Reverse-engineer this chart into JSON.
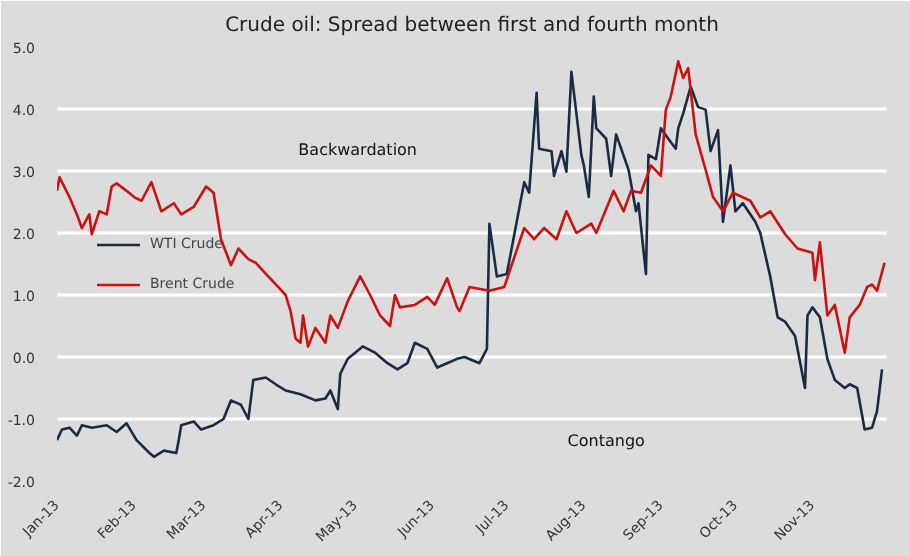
{
  "chart_data": {
    "type": "line",
    "title": "Crude oil: Spread between first and fourth month",
    "annotations": [
      "Backwardation",
      "Contango"
    ],
    "xlim": [
      "2013-01-01",
      "2013-12-01"
    ],
    "xticks": [
      {
        "value": "2013-01-01",
        "label": "Jan-13"
      },
      {
        "value": "2013-02-01",
        "label": "Feb-13"
      },
      {
        "value": "2013-03-01",
        "label": "Mar-13"
      },
      {
        "value": "2013-04-01",
        "label": "Apr-13"
      },
      {
        "value": "2013-05-01",
        "label": "May-13"
      },
      {
        "value": "2013-06-01",
        "label": "Jun-13"
      },
      {
        "value": "2013-07-01",
        "label": "Jul-13"
      },
      {
        "value": "2013-08-01",
        "label": "Aug-13"
      },
      {
        "value": "2013-09-01",
        "label": "Sep-13"
      },
      {
        "value": "2013-10-01",
        "label": "Oct-13"
      },
      {
        "value": "2013-11-01",
        "label": "Nov-13"
      }
    ],
    "ylim": [
      -2,
      5
    ],
    "yticks": [
      {
        "value": -2,
        "label": "-2.0"
      },
      {
        "value": -1,
        "label": "-1.0"
      },
      {
        "value": 0,
        "label": "0.0"
      },
      {
        "value": 1,
        "label": "1.0"
      },
      {
        "value": 2,
        "label": "2.0"
      },
      {
        "value": 3,
        "label": "3.0"
      },
      {
        "value": 4,
        "label": "4.0"
      },
      {
        "value": 5,
        "label": "5.0"
      }
    ],
    "grid": "y",
    "legend": "center left",
    "marker": "none",
    "line_style": "solid",
    "series": [
      {
        "name": "WTI Crude",
        "color": "#1c2b45",
        "x": [
          "2013-01-01",
          "2013-01-03",
          "2013-01-06",
          "2013-01-09",
          "2013-01-11",
          "2013-01-15",
          "2013-01-21",
          "2013-01-25",
          "2013-01-29",
          "2013-02-02",
          "2013-02-07",
          "2013-02-09",
          "2013-02-13",
          "2013-02-18",
          "2013-02-19",
          "2013-02-20",
          "2013-02-25",
          "2013-02-28",
          "2013-03-05",
          "2013-03-09",
          "2013-03-12",
          "2013-03-16",
          "2013-03-19",
          "2013-03-21",
          "2013-03-26",
          "2013-03-30",
          "2013-04-03",
          "2013-04-09",
          "2013-04-15",
          "2013-04-19",
          "2013-04-21",
          "2013-04-24",
          "2013-04-25",
          "2013-04-28",
          "2013-05-01",
          "2013-05-04",
          "2013-05-09",
          "2013-05-14",
          "2013-05-18",
          "2013-05-22",
          "2013-05-25",
          "2013-05-30",
          "2013-06-03",
          "2013-06-07",
          "2013-06-11",
          "2013-06-14",
          "2013-06-20",
          "2013-06-23",
          "2013-06-24",
          "2013-06-27",
          "2013-07-01",
          "2013-07-05",
          "2013-07-08",
          "2013-07-10",
          "2013-07-13",
          "2013-07-14",
          "2013-07-19",
          "2013-07-20",
          "2013-07-23",
          "2013-07-25",
          "2013-07-27",
          "2013-07-31",
          "2013-08-01",
          "2013-08-03",
          "2013-08-05",
          "2013-08-06",
          "2013-08-10",
          "2013-08-12",
          "2013-08-14",
          "2013-08-19",
          "2013-08-22",
          "2013-08-23",
          "2013-08-26",
          "2013-08-27",
          "2013-08-30",
          "2013-09-01",
          "2013-09-04",
          "2013-09-07",
          "2013-09-08",
          "2013-09-10",
          "2013-09-13",
          "2013-09-16",
          "2013-09-19",
          "2013-09-21",
          "2013-09-24",
          "2013-09-26",
          "2013-09-29",
          "2013-10-01",
          "2013-10-04",
          "2013-10-09",
          "2013-10-11",
          "2013-10-15",
          "2013-10-18",
          "2013-10-21",
          "2013-10-25",
          "2013-10-29",
          "2013-10-30",
          "2013-11-01",
          "2013-11-04",
          "2013-11-07",
          "2013-11-10",
          "2013-11-14",
          "2013-11-16",
          "2013-11-19",
          "2013-11-22",
          "2013-11-25",
          "2013-11-27",
          "2013-11-29"
        ],
        "values": [
          -1.34,
          -1.17,
          -1.14,
          -1.27,
          -1.1,
          -1.14,
          -1.1,
          -1.21,
          -1.07,
          -1.34,
          -1.54,
          -1.61,
          -1.51,
          -1.55,
          -1.34,
          -1.1,
          -1.04,
          -1.17,
          -1.1,
          -1.0,
          -0.7,
          -0.77,
          -1.0,
          -0.37,
          -0.33,
          -0.44,
          -0.54,
          -0.6,
          -0.7,
          -0.67,
          -0.54,
          -0.84,
          -0.27,
          -0.03,
          0.07,
          0.17,
          0.07,
          -0.1,
          -0.2,
          -0.1,
          0.23,
          0.13,
          -0.17,
          -0.1,
          -0.03,
          0.0,
          -0.1,
          0.13,
          2.15,
          1.3,
          1.34,
          2.18,
          2.82,
          2.65,
          4.26,
          3.36,
          3.32,
          2.92,
          3.32,
          2.99,
          4.6,
          3.26,
          3.09,
          2.58,
          4.2,
          3.69,
          3.52,
          2.92,
          3.59,
          3.02,
          2.35,
          2.48,
          1.34,
          3.26,
          3.19,
          3.69,
          3.52,
          3.36,
          3.69,
          3.93,
          4.36,
          4.03,
          3.99,
          3.32,
          3.66,
          2.18,
          3.09,
          2.35,
          2.48,
          2.18,
          2.0,
          1.3,
          0.64,
          0.57,
          0.34,
          -0.5,
          0.67,
          0.8,
          0.64,
          -0.03,
          -0.37,
          -0.5,
          -0.44,
          -0.5,
          -1.17,
          -1.14,
          -0.87,
          -0.2
        ]
      },
      {
        "name": "Brent Crude",
        "color": "#cc1111",
        "x": [
          "2013-01-01",
          "2013-01-02",
          "2013-01-06",
          "2013-01-09",
          "2013-01-11",
          "2013-01-14",
          "2013-01-15",
          "2013-01-18",
          "2013-01-21",
          "2013-01-23",
          "2013-01-25",
          "2013-01-29",
          "2013-02-01",
          "2013-02-04",
          "2013-02-08",
          "2013-02-12",
          "2013-02-17",
          "2013-02-20",
          "2013-02-25",
          "2013-03-02",
          "2013-03-05",
          "2013-03-08",
          "2013-03-12",
          "2013-03-15",
          "2013-03-19",
          "2013-03-22",
          "2013-03-27",
          "2013-03-31",
          "2013-04-03",
          "2013-04-05",
          "2013-04-07",
          "2013-04-09",
          "2013-04-10",
          "2013-04-12",
          "2013-04-15",
          "2013-04-19",
          "2013-04-21",
          "2013-04-24",
          "2013-04-28",
          "2013-05-03",
          "2013-05-07",
          "2013-05-11",
          "2013-05-15",
          "2013-05-17",
          "2013-05-19",
          "2013-05-25",
          "2013-05-30",
          "2013-06-02",
          "2013-06-07",
          "2013-06-11",
          "2013-06-12",
          "2013-06-16",
          "2013-06-24",
          "2013-06-30",
          "2013-07-08",
          "2013-07-12",
          "2013-07-16",
          "2013-07-21",
          "2013-07-25",
          "2013-07-29",
          "2013-08-04",
          "2013-08-06",
          "2013-08-13",
          "2013-08-17",
          "2013-08-20",
          "2013-08-24",
          "2013-08-28",
          "2013-09-01",
          "2013-09-03",
          "2013-09-05",
          "2013-09-08",
          "2013-09-10",
          "2013-09-12",
          "2013-09-15",
          "2013-09-19",
          "2013-09-22",
          "2013-09-26",
          "2013-09-30",
          "2013-10-07",
          "2013-10-11",
          "2013-10-15",
          "2013-10-21",
          "2013-10-26",
          "2013-11-01",
          "2013-11-02",
          "2013-11-04",
          "2013-11-07",
          "2013-11-10",
          "2013-11-14",
          "2013-11-16",
          "2013-11-20",
          "2013-11-23",
          "2013-11-25",
          "2013-11-27",
          "2013-11-30"
        ],
        "values": [
          2.68,
          2.9,
          2.58,
          2.3,
          2.08,
          2.3,
          1.98,
          2.35,
          2.3,
          2.75,
          2.8,
          2.68,
          2.58,
          2.52,
          2.82,
          2.35,
          2.48,
          2.3,
          2.42,
          2.75,
          2.65,
          1.9,
          1.48,
          1.75,
          1.58,
          1.52,
          1.3,
          1.13,
          1.0,
          0.74,
          0.3,
          0.23,
          0.67,
          0.17,
          0.47,
          0.23,
          0.67,
          0.47,
          0.9,
          1.3,
          1.0,
          0.67,
          0.5,
          1.0,
          0.8,
          0.84,
          0.97,
          0.84,
          1.27,
          0.8,
          0.74,
          1.13,
          1.07,
          1.13,
          2.08,
          1.9,
          2.08,
          1.9,
          2.35,
          2.0,
          2.15,
          2.0,
          2.68,
          2.35,
          2.68,
          2.65,
          3.09,
          2.92,
          3.99,
          4.2,
          4.77,
          4.5,
          4.66,
          3.59,
          3.02,
          2.58,
          2.35,
          2.65,
          2.52,
          2.25,
          2.35,
          1.98,
          1.75,
          1.68,
          1.24,
          1.85,
          0.67,
          0.84,
          0.07,
          0.64,
          0.84,
          1.13,
          1.17,
          1.07,
          1.52
        ]
      }
    ]
  }
}
